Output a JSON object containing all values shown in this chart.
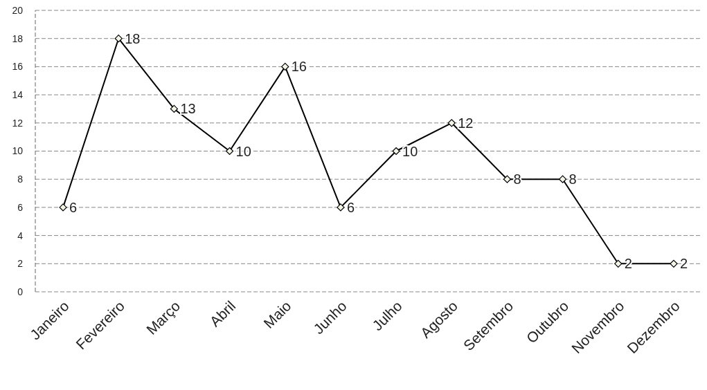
{
  "chart_data": {
    "type": "line",
    "categories": [
      "Janeiro",
      "Fevereiro",
      "Março",
      "Abril",
      "Maio",
      "Junho",
      "Julho",
      "Agosto",
      "Setembro",
      "Outubro",
      "Novembro",
      "Dezembro"
    ],
    "series": [
      {
        "color": "#000000",
        "values": [
          6,
          18,
          13,
          10,
          16,
          6,
          10,
          12,
          8,
          8,
          2,
          2
        ]
      }
    ],
    "ylim": [
      0,
      20
    ],
    "yticks": [
      0,
      2,
      4,
      6,
      8,
      10,
      12,
      14,
      16,
      18,
      20
    ],
    "grid": "y",
    "marker": "diamond",
    "line_style": "solid",
    "data_labels": true
  }
}
